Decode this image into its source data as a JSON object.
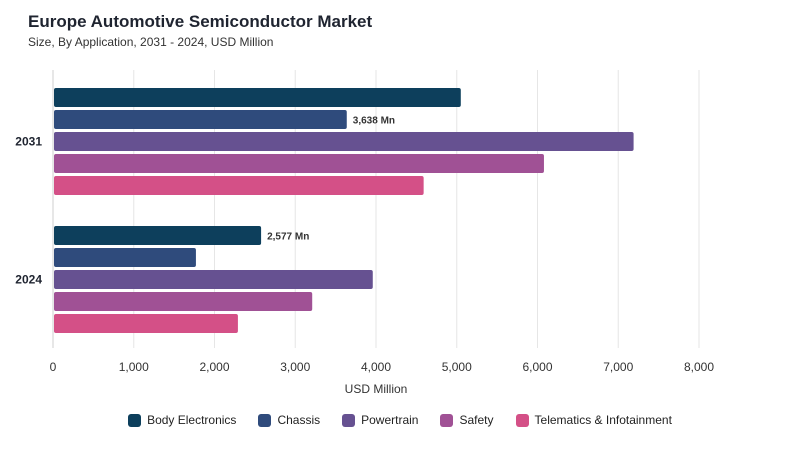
{
  "chart_data": {
    "type": "bar",
    "orientation": "horizontal",
    "title": "Europe Automotive Semiconductor Market",
    "subtitle": "Size, By Application, 2031 - 2024, USD Million",
    "xlabel": "USD Million",
    "ylabel": "",
    "xlim": [
      0,
      8000
    ],
    "xticks": [
      0,
      1000,
      2000,
      3000,
      4000,
      5000,
      6000,
      7000,
      8000
    ],
    "xtick_labels": [
      "0",
      "1,000",
      "2,000",
      "3,000",
      "4,000",
      "5,000",
      "6,000",
      "7,000",
      "8,000"
    ],
    "categories": [
      "2031",
      "2024"
    ],
    "grid": true,
    "legend_position": "bottom",
    "series": [
      {
        "name": "Body Electronics",
        "color": "#0d3f5c",
        "values": [
          5050,
          2577
        ],
        "labels": [
          "",
          "2,577 Mn"
        ]
      },
      {
        "name": "Chassis",
        "color": "#2f4b7c",
        "values": [
          3638,
          1770
        ],
        "labels": [
          "3,638 Mn",
          ""
        ]
      },
      {
        "name": "Powertrain",
        "color": "#665191",
        "values": [
          7190,
          3960
        ],
        "labels": [
          "",
          ""
        ]
      },
      {
        "name": "Safety",
        "color": "#a05195",
        "values": [
          6080,
          3210
        ],
        "labels": [
          "",
          ""
        ]
      },
      {
        "name": "Telematics & Infotainment",
        "color": "#d45087",
        "values": [
          4590,
          2290
        ],
        "labels": [
          "",
          ""
        ]
      }
    ]
  }
}
